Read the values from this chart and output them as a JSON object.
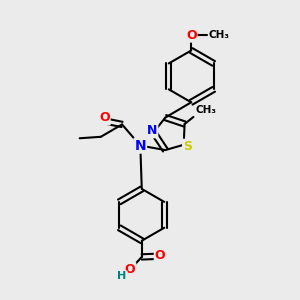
{
  "bg_color": "#ebebeb",
  "bond_color": "#000000",
  "bond_width": 1.5,
  "atom_colors": {
    "N": "#0000ff",
    "O": "#ff0000",
    "S": "#cccc00",
    "H": "#008080",
    "C": "#000000"
  },
  "font_size_atom": 9,
  "font_size_small": 7.5
}
